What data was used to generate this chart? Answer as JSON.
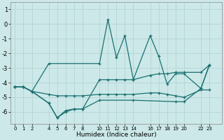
{
  "xlabel": "Humidex (Indice chaleur)",
  "bg_color": "#cce8e8",
  "grid_color": "#afd0d0",
  "line_color": "#1a7070",
  "lines": [
    {
      "x": [
        0,
        1,
        2,
        4,
        10,
        11,
        12,
        13,
        14,
        16,
        17,
        18,
        19,
        20,
        22,
        23
      ],
      "y": [
        -4.3,
        -4.3,
        -4.6,
        -2.7,
        -2.7,
        0.3,
        -2.3,
        -0.8,
        -3.8,
        -0.8,
        -2.2,
        -4.1,
        -3.4,
        -3.4,
        -4.4,
        -2.8
      ]
    },
    {
      "x": [
        0,
        1,
        2,
        4,
        5,
        6,
        7,
        8,
        10,
        11,
        12,
        13,
        14,
        16,
        17,
        18,
        19,
        20,
        22,
        23
      ],
      "y": [
        -4.3,
        -4.3,
        -4.6,
        -5.4,
        -6.4,
        -6.0,
        -5.8,
        -5.8,
        -3.8,
        -3.8,
        -3.8,
        -3.8,
        -3.8,
        -3.5,
        -3.4,
        -3.4,
        -3.3,
        -3.3,
        -3.3,
        -2.8
      ]
    },
    {
      "x": [
        0,
        1,
        2,
        4,
        5,
        6,
        7,
        8,
        10,
        11,
        12,
        13,
        14,
        16,
        17,
        18,
        19,
        20,
        22,
        23
      ],
      "y": [
        -4.3,
        -4.3,
        -4.6,
        -4.8,
        -4.9,
        -4.9,
        -4.9,
        -4.9,
        -4.8,
        -4.8,
        -4.8,
        -4.8,
        -4.8,
        -4.7,
        -4.7,
        -4.8,
        -4.9,
        -5.0,
        -4.5,
        -4.5
      ]
    },
    {
      "x": [
        0,
        1,
        2,
        4,
        5,
        6,
        7,
        8,
        10,
        14,
        19,
        20,
        22,
        23
      ],
      "y": [
        -4.3,
        -4.3,
        -4.6,
        -5.4,
        -6.4,
        -5.9,
        -5.8,
        -5.8,
        -5.2,
        -5.2,
        -5.3,
        -5.3,
        -4.4,
        -2.8
      ]
    }
  ],
  "xlim": [
    -0.5,
    24.5
  ],
  "ylim": [
    -6.8,
    1.5
  ],
  "yticks": [
    1,
    0,
    -1,
    -2,
    -3,
    -4,
    -5,
    -6
  ],
  "xtick_positions": [
    0,
    1,
    2,
    4,
    5,
    6,
    7,
    8,
    10,
    11,
    12,
    13,
    14,
    16,
    17,
    18,
    19,
    20,
    22,
    23
  ],
  "xtick_labels": [
    "0",
    "1",
    "2",
    "4",
    "5",
    "6",
    "7",
    "8",
    "10",
    "11",
    "12",
    "13",
    "14",
    "16",
    "17",
    "18",
    "19",
    "20",
    "22",
    "23"
  ]
}
